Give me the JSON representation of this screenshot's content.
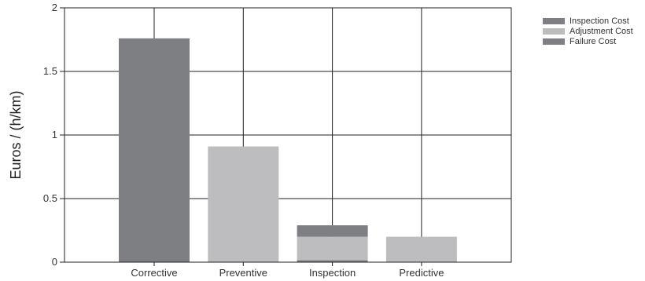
{
  "chart_data": {
    "type": "bar",
    "stacked": true,
    "categories": [
      "Corrective",
      "Preventive",
      "Inspection",
      "Predictive"
    ],
    "series": [
      {
        "name": "Failure Cost",
        "values": [
          1.76,
          0,
          0.015,
          0
        ],
        "color": "#7e7f83"
      },
      {
        "name": "Adjustment Cost",
        "values": [
          0,
          0.91,
          0.185,
          0.2
        ],
        "color": "#bdbdc0"
      },
      {
        "name": "Inspection Cost",
        "values": [
          0,
          0,
          0.09,
          0
        ],
        "color": "#7e7f83"
      }
    ],
    "legend_order": [
      "Inspection Cost",
      "Adjustment Cost",
      "Failure Cost"
    ],
    "ylabel": "Euros / (h/km)",
    "xlabel": "",
    "ylim": [
      0,
      2
    ],
    "yticks": [
      "0",
      "0.5",
      "1",
      "1.5",
      "2"
    ],
    "ytick_values": [
      0,
      0.5,
      1,
      1.5,
      2
    ],
    "grid": true,
    "legend_position": "top-right"
  }
}
